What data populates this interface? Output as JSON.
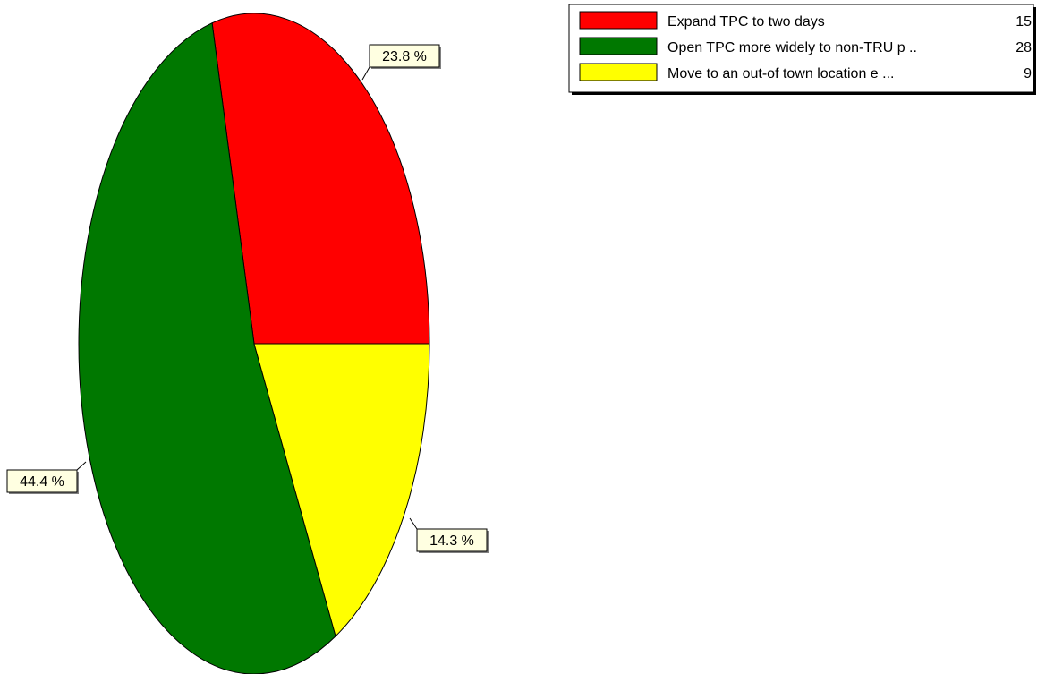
{
  "chart_data": {
    "type": "pie",
    "title": "",
    "slices": [
      {
        "label": "Expand TPC to two days",
        "value": 15,
        "percent_label": "23.8 %",
        "color": "#ff0000"
      },
      {
        "label": "Open TPC more widely to non-TRU p ..",
        "value": 28,
        "percent_label": "44.4 %",
        "color": "#007800"
      },
      {
        "label": "Move to an out-of town location e ...",
        "value": 9,
        "percent_label": "14.3 %",
        "color": "#ffff00"
      }
    ],
    "legend_position": "top-right",
    "start_angle_deg": 90,
    "direction": "clockwise-from-east-to-north"
  }
}
